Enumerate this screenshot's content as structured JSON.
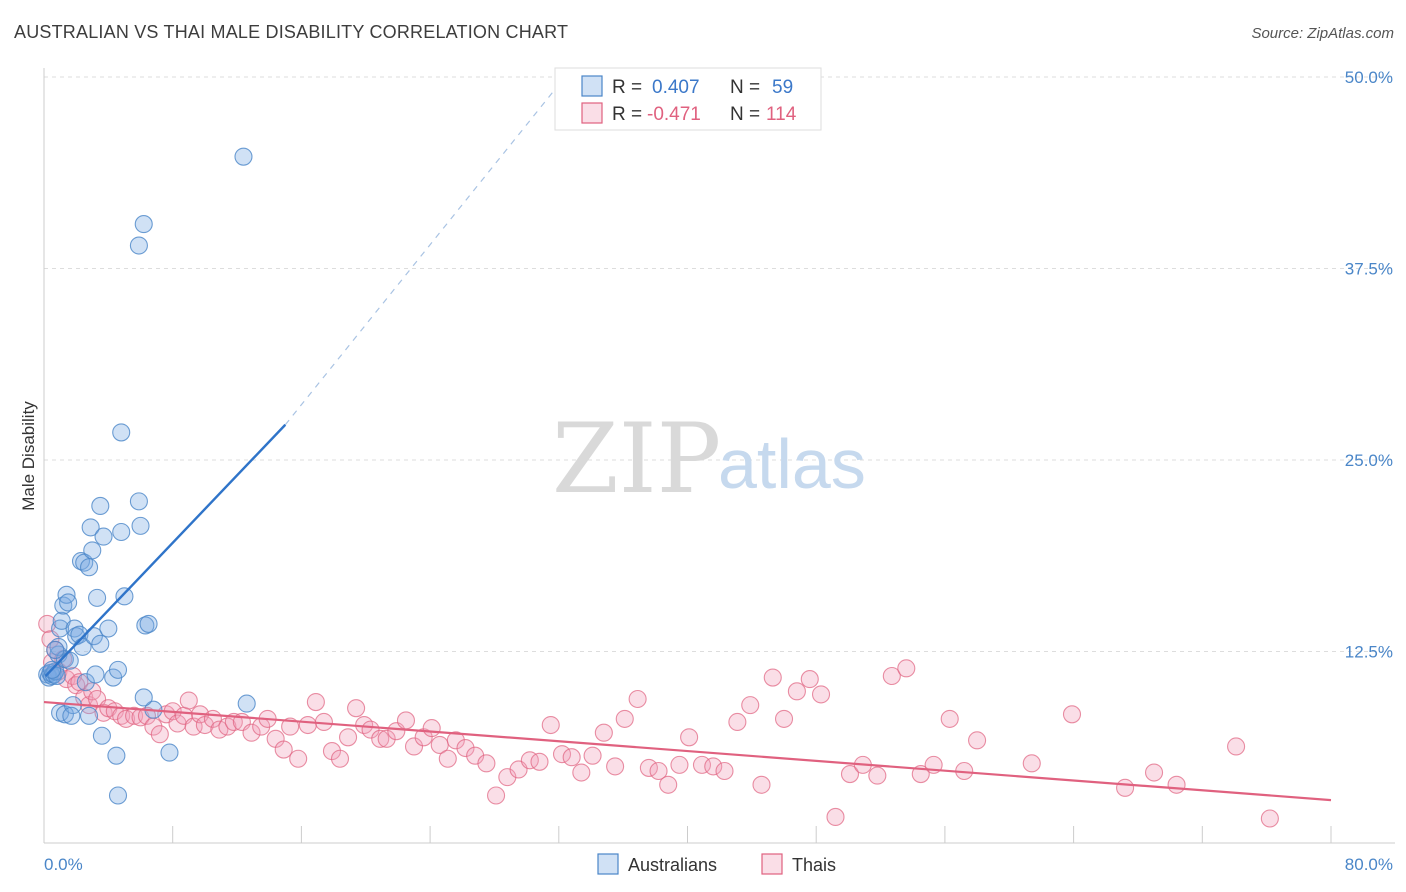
{
  "header": {
    "title": "AUSTRALIAN VS THAI MALE DISABILITY CORRELATION CHART",
    "source": "Source: ZipAtlas.com"
  },
  "watermark": {
    "zip": "ZIP",
    "atlas": "atlas"
  },
  "legend_box": {
    "r_label": "R =",
    "n_label": "N =",
    "blue": {
      "r": "0.407",
      "n": "59"
    },
    "pink": {
      "r": "-0.471",
      "n": "114"
    }
  },
  "bottom_legend": {
    "blue": "Australians",
    "pink": "Thais"
  },
  "colors": {
    "blue": "#4a86c8",
    "blue_fill": "rgba(120,170,225,0.35)",
    "pink": "#e0617f",
    "pink_fill": "rgba(240,160,185,0.35)",
    "grid": "#dddddd"
  },
  "chart_data": {
    "type": "scatter",
    "title": "AUSTRALIAN VS THAI MALE DISABILITY CORRELATION CHART",
    "xlabel": "",
    "ylabel": "Male Disability",
    "xlim": [
      0,
      80
    ],
    "ylim": [
      0,
      50
    ],
    "x_tick_labels": [
      "0.0%",
      "80.0%"
    ],
    "y_ticks": [
      12.5,
      25.0,
      37.5,
      50.0
    ],
    "y_tick_labels": [
      "12.5%",
      "25.0%",
      "37.5%",
      "50.0%"
    ],
    "grid": true,
    "legend": "top-center",
    "series": [
      {
        "name": "Australians",
        "r": 0.407,
        "n": 59,
        "trend": {
          "x0": 0.1,
          "y0": 10.9,
          "x1": 15.0,
          "y1": 27.3,
          "dash_to_x": 32.0,
          "dash_to_y": 49.5
        },
        "points": [
          [
            0.2,
            11.0
          ],
          [
            0.3,
            10.8
          ],
          [
            0.4,
            11.1
          ],
          [
            0.5,
            10.9
          ],
          [
            0.6,
            11.0
          ],
          [
            0.7,
            11.2
          ],
          [
            0.8,
            10.9
          ],
          [
            0.5,
            11.3
          ],
          [
            0.9,
            12.3
          ],
          [
            0.9,
            12.8
          ],
          [
            1.0,
            14.0
          ],
          [
            1.1,
            14.5
          ],
          [
            1.2,
            15.5
          ],
          [
            1.4,
            16.2
          ],
          [
            1.5,
            15.7
          ],
          [
            1.3,
            12.0
          ],
          [
            1.0,
            8.5
          ],
          [
            1.3,
            8.4
          ],
          [
            1.8,
            9.0
          ],
          [
            1.7,
            8.3
          ],
          [
            1.9,
            14.0
          ],
          [
            2.0,
            13.5
          ],
          [
            2.2,
            13.6
          ],
          [
            2.4,
            12.8
          ],
          [
            2.3,
            18.4
          ],
          [
            2.5,
            18.3
          ],
          [
            2.8,
            18.0
          ],
          [
            2.9,
            20.6
          ],
          [
            3.0,
            19.1
          ],
          [
            3.1,
            13.5
          ],
          [
            2.6,
            10.5
          ],
          [
            2.8,
            8.3
          ],
          [
            3.2,
            11.0
          ],
          [
            3.3,
            16.0
          ],
          [
            3.5,
            22.0
          ],
          [
            3.7,
            20.0
          ],
          [
            3.5,
            13.0
          ],
          [
            4.0,
            14.0
          ],
          [
            4.3,
            10.8
          ],
          [
            4.6,
            11.3
          ],
          [
            4.8,
            20.3
          ],
          [
            5.0,
            16.1
          ],
          [
            5.9,
            22.3
          ],
          [
            6.0,
            20.7
          ],
          [
            6.3,
            14.2
          ],
          [
            6.5,
            14.3
          ],
          [
            4.8,
            26.8
          ],
          [
            5.9,
            39.0
          ],
          [
            6.2,
            40.4
          ],
          [
            12.4,
            44.8
          ],
          [
            3.6,
            7.0
          ],
          [
            4.5,
            5.7
          ],
          [
            7.8,
            5.9
          ],
          [
            4.6,
            3.1
          ],
          [
            6.8,
            8.7
          ],
          [
            6.2,
            9.5
          ],
          [
            12.6,
            9.1
          ],
          [
            0.7,
            12.6
          ],
          [
            1.6,
            11.9
          ]
        ]
      },
      {
        "name": "Thais",
        "r": -0.471,
        "n": 114,
        "trend": {
          "x0": 0.0,
          "y0": 9.2,
          "x1": 80.0,
          "y1": 2.8
        },
        "points": [
          [
            0.2,
            14.3
          ],
          [
            0.4,
            13.3
          ],
          [
            0.5,
            11.8
          ],
          [
            0.7,
            12.6
          ],
          [
            0.9,
            11.2
          ],
          [
            1.2,
            12.0
          ],
          [
            1.4,
            10.7
          ],
          [
            1.8,
            10.9
          ],
          [
            2.0,
            10.3
          ],
          [
            2.2,
            10.5
          ],
          [
            2.5,
            9.5
          ],
          [
            2.8,
            9.0
          ],
          [
            3.0,
            9.9
          ],
          [
            3.3,
            9.4
          ],
          [
            3.7,
            8.5
          ],
          [
            4.0,
            8.8
          ],
          [
            4.4,
            8.6
          ],
          [
            4.8,
            8.3
          ],
          [
            5.1,
            8.1
          ],
          [
            5.6,
            8.3
          ],
          [
            6.0,
            8.2
          ],
          [
            6.4,
            8.3
          ],
          [
            6.8,
            7.6
          ],
          [
            7.2,
            7.1
          ],
          [
            7.6,
            8.4
          ],
          [
            8.0,
            8.6
          ],
          [
            8.3,
            7.8
          ],
          [
            8.7,
            8.3
          ],
          [
            9.0,
            9.3
          ],
          [
            9.3,
            7.6
          ],
          [
            9.7,
            8.4
          ],
          [
            10.0,
            7.7
          ],
          [
            10.5,
            8.1
          ],
          [
            10.9,
            7.4
          ],
          [
            11.4,
            7.6
          ],
          [
            11.8,
            7.9
          ],
          [
            12.3,
            7.9
          ],
          [
            12.9,
            7.2
          ],
          [
            13.5,
            7.6
          ],
          [
            13.9,
            8.1
          ],
          [
            14.4,
            6.8
          ],
          [
            14.9,
            6.1
          ],
          [
            15.3,
            7.6
          ],
          [
            15.8,
            5.5
          ],
          [
            16.4,
            7.7
          ],
          [
            16.9,
            9.2
          ],
          [
            17.4,
            7.9
          ],
          [
            17.9,
            6.0
          ],
          [
            18.4,
            5.5
          ],
          [
            18.9,
            6.9
          ],
          [
            19.4,
            8.8
          ],
          [
            19.9,
            7.7
          ],
          [
            20.3,
            7.4
          ],
          [
            20.9,
            6.8
          ],
          [
            21.3,
            6.8
          ],
          [
            21.9,
            7.3
          ],
          [
            22.5,
            8.0
          ],
          [
            23.0,
            6.3
          ],
          [
            23.6,
            6.9
          ],
          [
            24.1,
            7.5
          ],
          [
            24.6,
            6.4
          ],
          [
            25.1,
            5.5
          ],
          [
            25.6,
            6.7
          ],
          [
            26.2,
            6.2
          ],
          [
            26.8,
            5.7
          ],
          [
            27.5,
            5.2
          ],
          [
            28.1,
            3.1
          ],
          [
            28.8,
            4.3
          ],
          [
            29.5,
            4.8
          ],
          [
            30.2,
            5.4
          ],
          [
            30.8,
            5.3
          ],
          [
            31.5,
            7.7
          ],
          [
            32.2,
            5.8
          ],
          [
            32.8,
            5.6
          ],
          [
            33.4,
            4.6
          ],
          [
            34.1,
            5.7
          ],
          [
            34.8,
            7.2
          ],
          [
            35.5,
            5.0
          ],
          [
            36.1,
            8.1
          ],
          [
            36.9,
            9.4
          ],
          [
            37.6,
            4.9
          ],
          [
            38.2,
            4.7
          ],
          [
            38.8,
            3.8
          ],
          [
            39.5,
            5.1
          ],
          [
            40.1,
            6.9
          ],
          [
            40.9,
            5.1
          ],
          [
            41.6,
            5.0
          ],
          [
            42.3,
            4.7
          ],
          [
            43.1,
            7.9
          ],
          [
            43.9,
            9.0
          ],
          [
            44.6,
            3.8
          ],
          [
            45.3,
            10.8
          ],
          [
            46.0,
            8.1
          ],
          [
            46.8,
            9.9
          ],
          [
            47.6,
            10.7
          ],
          [
            48.3,
            9.7
          ],
          [
            49.2,
            1.7
          ],
          [
            50.1,
            4.5
          ],
          [
            50.9,
            5.1
          ],
          [
            51.8,
            4.4
          ],
          [
            52.7,
            10.9
          ],
          [
            53.6,
            11.4
          ],
          [
            54.5,
            4.5
          ],
          [
            55.3,
            5.1
          ],
          [
            56.3,
            8.1
          ],
          [
            57.2,
            4.7
          ],
          [
            58.0,
            6.7
          ],
          [
            61.4,
            5.2
          ],
          [
            63.9,
            8.4
          ],
          [
            67.2,
            3.6
          ],
          [
            69.0,
            4.6
          ],
          [
            70.4,
            3.8
          ],
          [
            74.1,
            6.3
          ],
          [
            76.2,
            1.6
          ]
        ]
      }
    ]
  }
}
